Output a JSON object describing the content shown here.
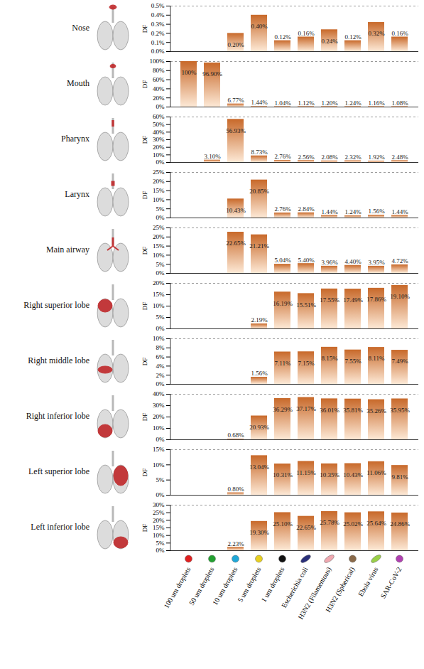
{
  "chart_data": [
    {
      "type": "bar",
      "title": "Nose",
      "y_label": "DF",
      "color": "#c8692a",
      "data_labels": true,
      "tick_labels": "y",
      "categories": [
        "100 um droplets",
        "50 um droplets",
        "10 um droplets",
        "5 um droplets",
        "1 um droplets",
        "Escherichia coli",
        "H3N2 (Filamentous)",
        "H3N2 (Spherical)",
        "Ebola virus",
        "SAR-CoV-2"
      ],
      "values": [
        null,
        null,
        0.2,
        0.4,
        0.12,
        0.16,
        0.24,
        0.12,
        0.32,
        0.16
      ],
      "value_labels": [
        null,
        null,
        "0.20%",
        "0.40%",
        "0.12%",
        "0.16%",
        "0.24%",
        "0.12%",
        "0.32%",
        "0.16%"
      ],
      "ylim": [
        0,
        0.5
      ],
      "yticks": [
        {
          "value": 0,
          "label": "0.0%"
        },
        {
          "value": 0.1,
          "label": "0.1%"
        },
        {
          "value": 0.2,
          "label": "0.2%"
        },
        {
          "value": 0.3,
          "label": "0.3%"
        },
        {
          "value": 0.4,
          "label": "0.4%"
        },
        {
          "value": 0.5,
          "label": "0.5%"
        }
      ]
    },
    {
      "type": "bar",
      "title": "Mouth",
      "y_label": "DF",
      "color": "#c8692a",
      "data_labels": true,
      "tick_labels": "y",
      "categories": [
        "100 um droplets",
        "50 um droplets",
        "10 um droplets",
        "5 um droplets",
        "1 um droplets",
        "Escherichia coli",
        "H3N2 (Filamentous)",
        "H3N2 (Spherical)",
        "Ebola virus",
        "SAR-CoV-2"
      ],
      "values": [
        100,
        96.9,
        6.77,
        1.44,
        1.04,
        1.12,
        1.2,
        1.24,
        1.16,
        1.08
      ],
      "value_labels": [
        "100%",
        "96.90%",
        "6.77%",
        "1.44%",
        "1.04%",
        "1.12%",
        "1.20%",
        "1.24%",
        "1.16%",
        "1.08%"
      ],
      "ylim": [
        0,
        100
      ],
      "yticks": [
        {
          "value": 0,
          "label": "0%"
        },
        {
          "value": 20,
          "label": "20%"
        },
        {
          "value": 40,
          "label": "40%"
        },
        {
          "value": 60,
          "label": "60%"
        },
        {
          "value": 80,
          "label": "80%"
        },
        {
          "value": 100,
          "label": "100%"
        }
      ]
    },
    {
      "type": "bar",
      "title": "Pharynx",
      "y_label": "DF",
      "color": "#c8692a",
      "data_labels": true,
      "tick_labels": "y",
      "categories": [
        "100 um droplets",
        "50 um droplets",
        "10 um droplets",
        "5 um droplets",
        "1 um droplets",
        "Escherichia coli",
        "H3N2 (Filamentous)",
        "H3N2 (Spherical)",
        "Ebola virus",
        "SAR-CoV-2"
      ],
      "values": [
        null,
        3.1,
        56.93,
        8.73,
        2.76,
        2.56,
        2.08,
        2.32,
        1.92,
        2.48
      ],
      "value_labels": [
        null,
        "3.10%",
        "56.93%",
        "8.73%",
        "2.76%",
        "2.56%",
        "2.08%",
        "2.32%",
        "1.92%",
        "2.48%"
      ],
      "ylim": [
        0,
        60
      ],
      "yticks": [
        {
          "value": 0,
          "label": "0%"
        },
        {
          "value": 10,
          "label": "10%"
        },
        {
          "value": 20,
          "label": "20%"
        },
        {
          "value": 30,
          "label": "30%"
        },
        {
          "value": 40,
          "label": "40%"
        },
        {
          "value": 50,
          "label": "50%"
        },
        {
          "value": 60,
          "label": "60%"
        }
      ]
    },
    {
      "type": "bar",
      "title": "Larynx",
      "y_label": "DF",
      "color": "#c8692a",
      "data_labels": true,
      "tick_labels": "y",
      "categories": [
        "100 um droplets",
        "50 um droplets",
        "10 um droplets",
        "5 um droplets",
        "1 um droplets",
        "Escherichia coli",
        "H3N2 (Filamentous)",
        "H3N2 (Spherical)",
        "Ebola virus",
        "SAR-CoV-2"
      ],
      "values": [
        null,
        null,
        10.43,
        20.85,
        2.76,
        2.84,
        1.44,
        1.24,
        1.56,
        1.44
      ],
      "value_labels": [
        null,
        null,
        "10.43%",
        "20.85%",
        "2.76%",
        "2.84%",
        "1.44%",
        "1.24%",
        "1.56%",
        "1.44%"
      ],
      "ylim": [
        0,
        25
      ],
      "yticks": [
        {
          "value": 0,
          "label": "0%"
        },
        {
          "value": 5,
          "label": "5%"
        },
        {
          "value": 10,
          "label": "10%"
        },
        {
          "value": 15,
          "label": "15%"
        },
        {
          "value": 20,
          "label": "20%"
        },
        {
          "value": 25,
          "label": "25%"
        }
      ]
    },
    {
      "type": "bar",
      "title": "Main airway",
      "y_label": "DF",
      "color": "#c8692a",
      "data_labels": true,
      "tick_labels": "y",
      "categories": [
        "100 um droplets",
        "50 um droplets",
        "10 um droplets",
        "5 um droplets",
        "1 um droplets",
        "Escherichia coli",
        "H3N2 (Filamentous)",
        "H3N2 (Spherical)",
        "Ebola virus",
        "SAR-CoV-2"
      ],
      "values": [
        null,
        null,
        22.65,
        21.21,
        5.04,
        5.4,
        3.96,
        4.4,
        3.95,
        4.72
      ],
      "value_labels": [
        null,
        null,
        "22.65%",
        "21.21%",
        "5.04%",
        "5.40%",
        "3.96%",
        "4.40%",
        "3.95%",
        "4.72%"
      ],
      "ylim": [
        0,
        25
      ],
      "yticks": [
        {
          "value": 0,
          "label": "0%"
        },
        {
          "value": 5,
          "label": "5%"
        },
        {
          "value": 10,
          "label": "10%"
        },
        {
          "value": 15,
          "label": "15%"
        },
        {
          "value": 20,
          "label": "20%"
        },
        {
          "value": 25,
          "label": "25%"
        }
      ]
    },
    {
      "type": "bar",
      "title": "Right superior lobe",
      "y_label": "DF",
      "color": "#c8692a",
      "data_labels": true,
      "tick_labels": "y",
      "categories": [
        "100 um droplets",
        "50 um droplets",
        "10 um droplets",
        "5 um droplets",
        "1 um droplets",
        "Escherichia coli",
        "H3N2 (Filamentous)",
        "H3N2 (Spherical)",
        "Ebola virus",
        "SAR-CoV-2"
      ],
      "values": [
        null,
        null,
        null,
        2.19,
        16.19,
        15.51,
        17.55,
        17.49,
        17.86,
        19.1
      ],
      "value_labels": [
        null,
        null,
        null,
        "2.19%",
        "16.19%",
        "15.51%",
        "17.55%",
        "17.49%",
        "17.86%",
        "19.10%"
      ],
      "ylim": [
        0,
        20
      ],
      "yticks": [
        {
          "value": 0,
          "label": "0%"
        },
        {
          "value": 5,
          "label": "5%"
        },
        {
          "value": 10,
          "label": "10%"
        },
        {
          "value": 15,
          "label": "15%"
        },
        {
          "value": 20,
          "label": "20%"
        }
      ]
    },
    {
      "type": "bar",
      "title": "Right middle lobe",
      "y_label": "DF",
      "color": "#c8692a",
      "data_labels": true,
      "tick_labels": "y",
      "categories": [
        "100 um droplets",
        "50 um droplets",
        "10 um droplets",
        "5 um droplets",
        "1 um droplets",
        "Escherichia coli",
        "H3N2 (Filamentous)",
        "H3N2 (Spherical)",
        "Ebola virus",
        "SAR-CoV-2"
      ],
      "values": [
        null,
        null,
        null,
        1.56,
        7.11,
        7.15,
        8.15,
        7.55,
        8.11,
        7.49
      ],
      "value_labels": [
        null,
        null,
        null,
        "1.56%",
        "7.11%",
        "7.15%",
        "8.15%",
        "7.55%",
        "8.11%",
        "7.49%"
      ],
      "ylim": [
        0,
        10
      ],
      "yticks": [
        {
          "value": 0,
          "label": "0%"
        },
        {
          "value": 2,
          "label": "2%"
        },
        {
          "value": 4,
          "label": "4%"
        },
        {
          "value": 6,
          "label": "6%"
        },
        {
          "value": 8,
          "label": "8%"
        },
        {
          "value": 10,
          "label": "10%"
        }
      ]
    },
    {
      "type": "bar",
      "title": "Right inferior lobe",
      "y_label": "DF",
      "color": "#c8692a",
      "data_labels": true,
      "tick_labels": "y",
      "categories": [
        "100 um droplets",
        "50 um droplets",
        "10 um droplets",
        "5 um droplets",
        "1 um droplets",
        "Escherichia coli",
        "H3N2 (Filamentous)",
        "H3N2 (Spherical)",
        "Ebola virus",
        "SAR-CoV-2"
      ],
      "values": [
        null,
        null,
        0.68,
        20.93,
        36.29,
        37.17,
        36.01,
        35.81,
        35.26,
        35.95
      ],
      "value_labels": [
        null,
        null,
        "0.68%",
        "20.93%",
        "36.29%",
        "37.17%",
        "36.01%",
        "35.81%",
        "35.26%",
        "35.95%"
      ],
      "ylim": [
        0,
        40
      ],
      "yticks": [
        {
          "value": 0,
          "label": "0%"
        },
        {
          "value": 10,
          "label": "10%"
        },
        {
          "value": 20,
          "label": "20%"
        },
        {
          "value": 30,
          "label": "30%"
        },
        {
          "value": 40,
          "label": "40%"
        }
      ]
    },
    {
      "type": "bar",
      "title": "Left superior lobe",
      "y_label": "DF",
      "color": "#c8692a",
      "data_labels": true,
      "tick_labels": "y",
      "categories": [
        "100 um droplets",
        "50 um droplets",
        "10 um droplets",
        "5 um droplets",
        "1 um droplets",
        "Escherichia coli",
        "H3N2 (Filamentous)",
        "H3N2 (Spherical)",
        "Ebola virus",
        "SAR-CoV-2"
      ],
      "values": [
        null,
        null,
        0.8,
        13.04,
        10.31,
        11.15,
        10.35,
        10.43,
        11.06,
        9.81
      ],
      "value_labels": [
        null,
        null,
        "0.80%",
        "13.04%",
        "10.31%",
        "11.15%",
        "10.35%",
        "10.43%",
        "11.06%",
        "9.81%"
      ],
      "ylim": [
        0,
        15
      ],
      "yticks": [
        {
          "value": 0,
          "label": "0%"
        },
        {
          "value": 5,
          "label": "5%"
        },
        {
          "value": 10,
          "label": "10%"
        },
        {
          "value": 15,
          "label": "15%"
        }
      ]
    },
    {
      "type": "bar",
      "title": "Left inferior lobe",
      "y_label": "DF",
      "color": "#c8692a",
      "data_labels": true,
      "categories": [
        "100 um droplets",
        "50 um droplets",
        "10 um droplets",
        "5 um droplets",
        "1 um droplets",
        "Escherichia coli",
        "H3N2 (Filamentous)",
        "H3N2 (Spherical)",
        "Ebola virus",
        "SAR-CoV-2"
      ],
      "values": [
        null,
        null,
        2.23,
        19.3,
        25.1,
        22.65,
        25.78,
        25.02,
        25.64,
        24.86
      ],
      "value_labels": [
        null,
        null,
        "2.23%",
        "19.30%",
        "25.10%",
        "22.65%",
        "25.78%",
        "25.02%",
        "25.64%",
        "24.86%"
      ],
      "ylim": [
        0,
        30
      ],
      "yticks": [
        {
          "value": 0,
          "label": "0%"
        },
        {
          "value": 5,
          "label": "5%"
        },
        {
          "value": 10,
          "label": "10%"
        },
        {
          "value": 15,
          "label": "15%"
        },
        {
          "value": 20,
          "label": "20%"
        },
        {
          "value": 25,
          "label": "25%"
        },
        {
          "value": 30,
          "label": "30%"
        }
      ]
    }
  ]
}
